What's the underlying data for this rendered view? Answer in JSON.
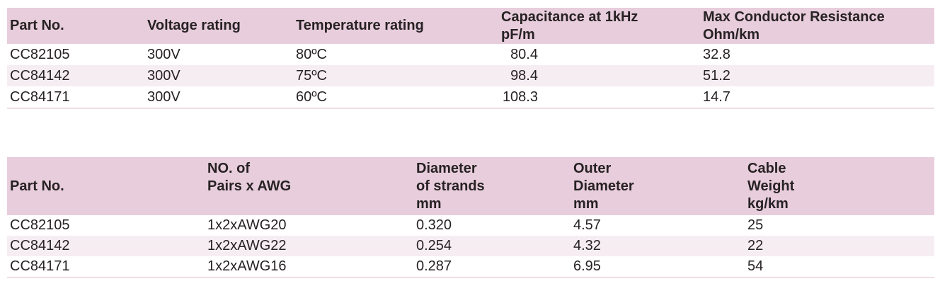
{
  "colors": {
    "header_bg": "#e8cddc",
    "row_alt_bg": "#f6edf2",
    "row_bg": "#ffffff",
    "border": "#eedde7",
    "text": "#272223",
    "page_bg": "#ffffff"
  },
  "table1": {
    "title": "electrical-specifications",
    "columns": [
      "Part No.",
      "Voltage rating",
      "Temperature rating",
      "Capacitance at 1kHz\npF/m",
      "Max Conductor Resistance\nOhm/km"
    ],
    "rows": [
      [
        "CC82105",
        "300V",
        "80ºC",
        "80.4",
        "32.8"
      ],
      [
        "CC84142",
        "300V",
        "75ºC",
        "98.4",
        "51.2"
      ],
      [
        "CC84171",
        "300V",
        "60ºC",
        "108.3",
        "14.7"
      ]
    ]
  },
  "table2": {
    "title": "mechanical-specifications",
    "columns": [
      "Part No.",
      "NO. of\nPairs x AWG",
      "Diameter\nof strands\nmm",
      "Outer\nDiameter\nmm",
      "Cable\nWeight\nkg/km"
    ],
    "rows": [
      [
        "CC82105",
        "1x2xAWG20",
        "0.320",
        "4.57",
        "25"
      ],
      [
        "CC84142",
        "1x2xAWG22",
        "0.254",
        "4.32",
        "22"
      ],
      [
        "CC84171",
        "1x2xAWG16",
        "0.287",
        "6.95",
        "54"
      ]
    ]
  }
}
